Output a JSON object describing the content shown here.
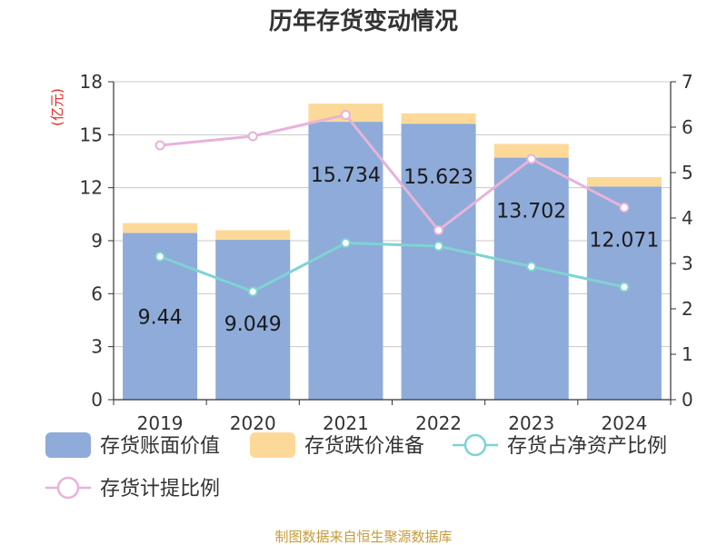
{
  "chart_data": {
    "type": "bar",
    "title": "历年存货变动情况",
    "unit_label": "(亿元)",
    "categories": [
      "2019",
      "2020",
      "2021",
      "2022",
      "2023",
      "2024"
    ],
    "ylim_left": [
      0,
      18
    ],
    "yticks_left": [
      0,
      3,
      6,
      9,
      12,
      15,
      18
    ],
    "ylim_right": [
      0,
      7
    ],
    "yticks_right": [
      0,
      1,
      2,
      3,
      4,
      5,
      6,
      7
    ],
    "grid": true,
    "legend_position": "bottom",
    "bars": [
      {
        "name": "存货账面价值",
        "color": "#8eabd9",
        "values": [
          9.44,
          9.049,
          15.734,
          15.623,
          13.702,
          12.071
        ],
        "labels": [
          "9.44",
          "9.049",
          "15.734",
          "15.623",
          "13.702",
          "12.071"
        ]
      },
      {
        "name": "存货跌价准备",
        "color": "#fdd999",
        "values": [
          0.56,
          0.55,
          1.03,
          0.59,
          0.78,
          0.53
        ]
      }
    ],
    "lines": [
      {
        "name": "存货占净资产比例",
        "color": "#7fd3d3",
        "axis": "right",
        "values": [
          3.15,
          2.38,
          3.45,
          3.38,
          2.93,
          2.48
        ]
      },
      {
        "name": "存货计提比例",
        "color": "#e6b3da",
        "axis": "right",
        "values": [
          5.6,
          5.8,
          6.27,
          3.73,
          5.3,
          4.23
        ]
      }
    ]
  },
  "footer": {
    "source": "制图数据来自恒生聚源数据库"
  }
}
